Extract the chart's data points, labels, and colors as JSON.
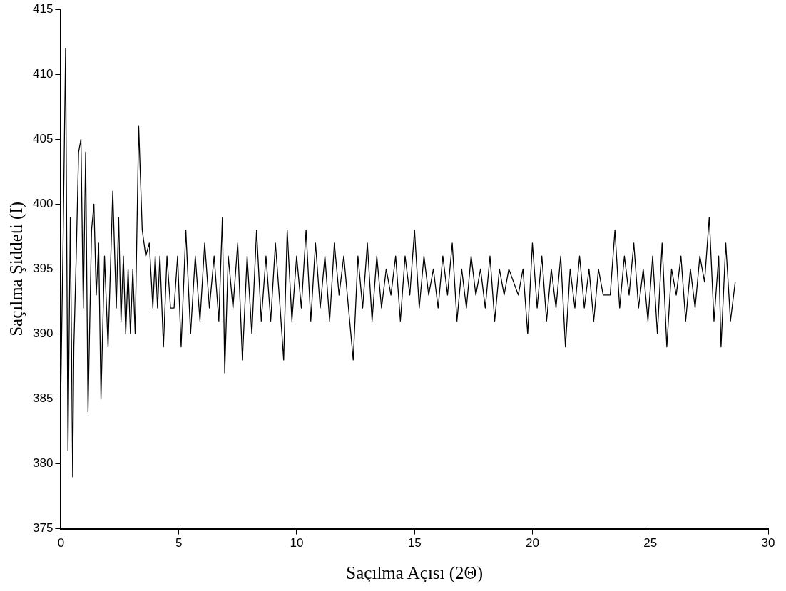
{
  "chart_data": {
    "type": "line",
    "xlabel": "Saçılma Açısı (2Θ)",
    "ylabel": "Saçılma Şiddeti (I)",
    "xlim": [
      0,
      30
    ],
    "ylim": [
      375,
      415
    ],
    "xticks": [
      0,
      5,
      10,
      15,
      20,
      25,
      30
    ],
    "yticks": [
      375,
      380,
      385,
      390,
      395,
      400,
      405,
      410,
      415
    ],
    "grid": false,
    "legend": false,
    "marker": "none",
    "line_style": "solid",
    "series": [
      {
        "color": "#000000",
        "x": [
          0,
          0.1,
          0.2,
          0.3,
          0.4,
          0.5,
          0.55,
          0.65,
          0.75,
          0.85,
          0.95,
          1.05,
          1.15,
          1.3,
          1.4,
          1.5,
          1.6,
          1.7,
          1.85,
          2.0,
          2.2,
          2.35,
          2.45,
          2.55,
          2.65,
          2.75,
          2.85,
          2.95,
          3.05,
          3.15,
          3.3,
          3.45,
          3.6,
          3.75,
          3.9,
          4.0,
          4.1,
          4.2,
          4.35,
          4.5,
          4.65,
          4.8,
          4.95,
          5.1,
          5.3,
          5.5,
          5.7,
          5.9,
          6.1,
          6.3,
          6.5,
          6.7,
          6.85,
          6.95,
          7.1,
          7.3,
          7.5,
          7.7,
          7.9,
          8.1,
          8.3,
          8.5,
          8.7,
          8.9,
          9.1,
          9.3,
          9.45,
          9.6,
          9.8,
          10.0,
          10.2,
          10.4,
          10.6,
          10.8,
          11.0,
          11.2,
          11.4,
          11.6,
          11.8,
          12.0,
          12.2,
          12.4,
          12.6,
          12.8,
          13.0,
          13.2,
          13.4,
          13.6,
          13.8,
          14.0,
          14.2,
          14.4,
          14.6,
          14.8,
          15.0,
          15.2,
          15.4,
          15.6,
          15.8,
          16.0,
          16.2,
          16.4,
          16.6,
          16.8,
          17.0,
          17.2,
          17.4,
          17.6,
          17.8,
          18.0,
          18.2,
          18.4,
          18.6,
          18.8,
          19.0,
          19.2,
          19.4,
          19.6,
          19.8,
          20.0,
          20.2,
          20.4,
          20.6,
          20.8,
          21.0,
          21.2,
          21.4,
          21.6,
          21.8,
          22.0,
          22.2,
          22.4,
          22.6,
          22.8,
          23.0,
          23.1,
          23.3,
          23.5,
          23.7,
          23.9,
          24.1,
          24.3,
          24.5,
          24.7,
          24.9,
          25.1,
          25.3,
          25.5,
          25.7,
          25.9,
          26.1,
          26.3,
          26.5,
          26.7,
          26.9,
          27.1,
          27.3,
          27.5,
          27.7,
          27.9,
          28.0,
          28.2,
          28.4,
          28.6
        ],
        "values": [
          386,
          398,
          412,
          381,
          399,
          379,
          389,
          396,
          404,
          405,
          392,
          404,
          384,
          398,
          400,
          393,
          397,
          385,
          396,
          389,
          401,
          392,
          399,
          391,
          396,
          390,
          395,
          390,
          395,
          390,
          406,
          398,
          396,
          397,
          392,
          396,
          392,
          396,
          389,
          396,
          392,
          392,
          396,
          389,
          398,
          390,
          396,
          391,
          397,
          392,
          396,
          391,
          399,
          387,
          396,
          392,
          397,
          388,
          396,
          390,
          398,
          391,
          396,
          391,
          397,
          392,
          388,
          398,
          391,
          396,
          392,
          398,
          391,
          397,
          392,
          396,
          391,
          397,
          393,
          396,
          392,
          388,
          396,
          392,
          397,
          391,
          396,
          392,
          395,
          393,
          396,
          391,
          396,
          393,
          398,
          392,
          396,
          393,
          395,
          392,
          396,
          393,
          397,
          391,
          395,
          392,
          396,
          393,
          395,
          392,
          396,
          391,
          395,
          393,
          395,
          394,
          393,
          395,
          390,
          397,
          392,
          396,
          391,
          395,
          392,
          396,
          389,
          395,
          392,
          396,
          392,
          395,
          391,
          395,
          393,
          393,
          393,
          398,
          392,
          396,
          393,
          397,
          392,
          395,
          391,
          396,
          390,
          397,
          389,
          395,
          393,
          396,
          391,
          395,
          392,
          396,
          394,
          399,
          391,
          396,
          389,
          397,
          391,
          394
        ]
      }
    ]
  }
}
